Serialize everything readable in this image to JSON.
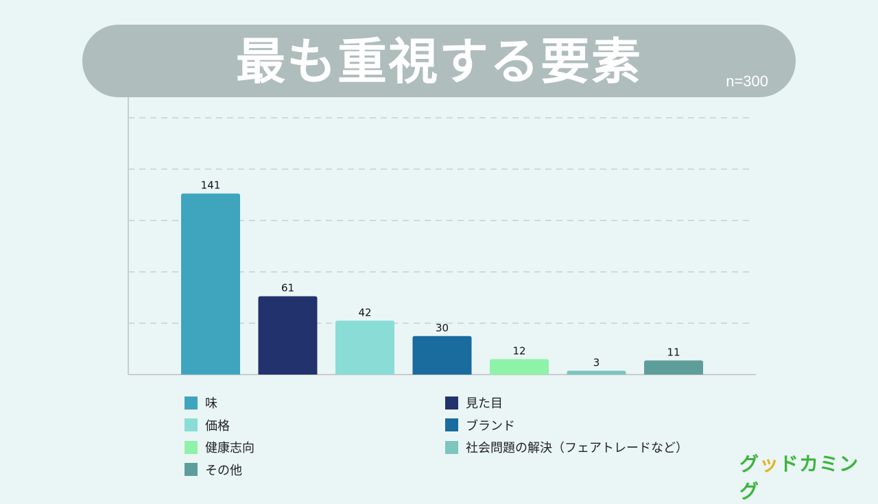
{
  "title": "最も重視する要素",
  "sample_label": "n=300",
  "brand": {
    "pre": "グ",
    "accent": "ッ",
    "post": "ドカミング"
  },
  "chart_data": {
    "type": "bar",
    "title": "最も重視する要素",
    "xlabel": "",
    "ylabel": "",
    "ylim": [
      0,
      200
    ],
    "grid": true,
    "categories": [
      "味",
      "見た目",
      "価格",
      "ブランド",
      "健康志向",
      "社会問題の解決（フェアトレードなど）",
      "その他"
    ],
    "values": [
      141,
      61,
      42,
      30,
      12,
      3,
      11
    ],
    "colors": [
      "#3fa5bf",
      "#22326d",
      "#89ddd6",
      "#1a6b9e",
      "#8ef2a8",
      "#7ec4bf",
      "#5e9e9a"
    ],
    "legend_position": "bottom"
  }
}
